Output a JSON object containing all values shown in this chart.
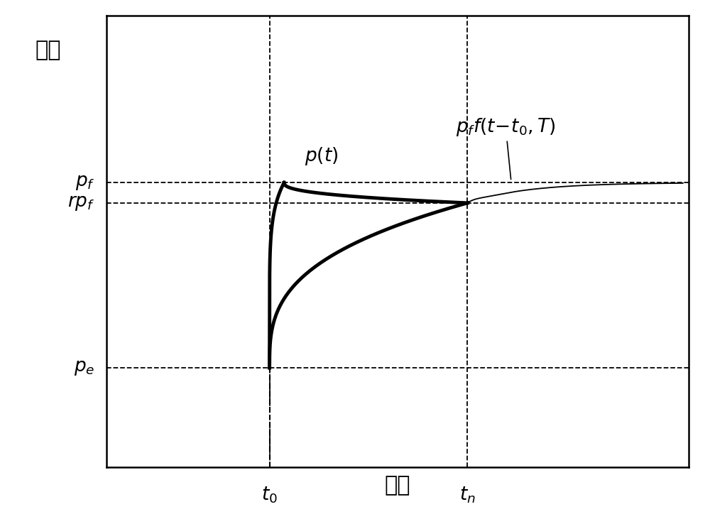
{
  "title": "",
  "xlabel": "时间",
  "ylabel": "压力",
  "background_color": "#ffffff",
  "t0": 0.28,
  "tn": 0.62,
  "pe": 0.22,
  "pf": 0.63,
  "rpf": 0.585,
  "xlim": [
    0.0,
    1.0
  ],
  "ylim": [
    0.0,
    1.0
  ],
  "xlabel_fontsize": 22,
  "ylabel_fontsize": 22,
  "tick_label_fontsize": 19,
  "annotation_fontsize": 19
}
